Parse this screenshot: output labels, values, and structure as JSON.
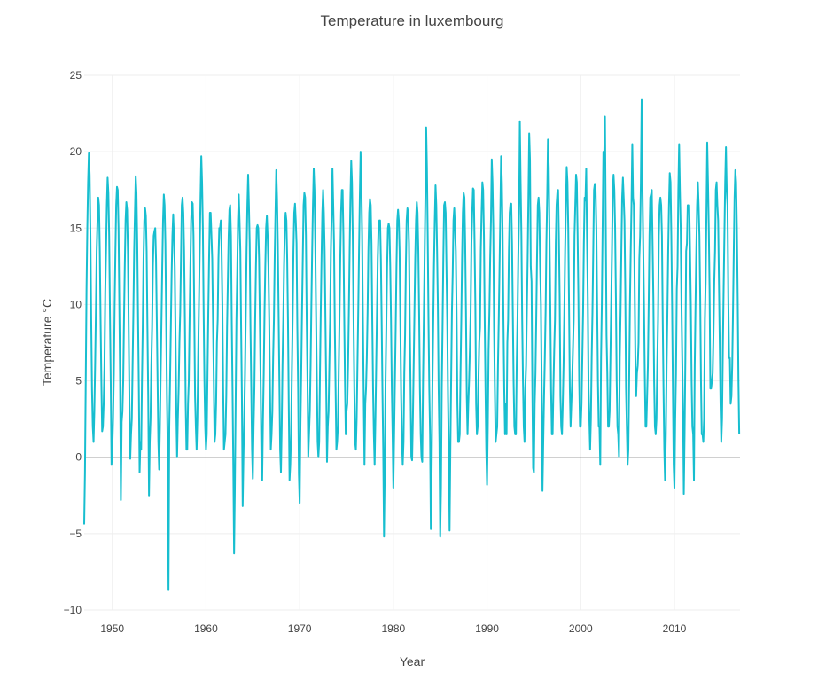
{
  "chart_data": {
    "type": "line",
    "title": "Temperature in luxembourg",
    "xlabel": "Year",
    "ylabel": "Temperature °C",
    "xlim": [
      1947,
      2017
    ],
    "ylim": [
      -10,
      25
    ],
    "x_ticks": [
      1950,
      1960,
      1970,
      1980,
      1990,
      2000,
      2010
    ],
    "y_ticks": [
      -10,
      -5,
      0,
      5,
      10,
      15,
      20,
      25
    ],
    "grid": true,
    "legend": "none",
    "colors": {
      "series": "#17becf",
      "zero_line": "#444444",
      "grid": "#eeeeee"
    },
    "sampling": "monthly mean temperature, Jan 1947 – Dec 2016",
    "series": [
      {
        "x_start": "1947-01",
        "x_step": "1 month",
        "values": [
          -4.4,
          -1.0,
          5.0,
          11.0,
          15.0,
          18.0,
          19.9,
          18.5,
          14.5,
          9.0,
          4.5,
          2.0,
          1.0,
          3.0,
          6.0,
          9.5,
          13.5,
          15.4,
          17.0,
          16.5,
          13.5,
          9.0,
          5.0,
          1.7,
          2.0,
          3.5,
          6.0,
          10.8,
          13.5,
          16.5,
          18.3,
          17.3,
          14.5,
          9.5,
          5.0,
          -0.5,
          0.5,
          2.5,
          5.5,
          10.0,
          13.5,
          16.5,
          17.7,
          17.5,
          15.0,
          10.0,
          5.0,
          -2.8,
          2.3,
          3.0,
          5.0,
          9.0,
          12.5,
          15.5,
          16.7,
          16.2,
          13.5,
          8.5,
          3.5,
          -0.1,
          1.5,
          2.5,
          6.0,
          9.5,
          13.5,
          16.0,
          18.4,
          17.3,
          14.0,
          9.0,
          4.5,
          -1.0,
          1.0,
          0.5,
          5.0,
          8.5,
          13.0,
          15.5,
          16.3,
          15.8,
          13.5,
          8.5,
          4.0,
          -2.5,
          1.0,
          2.5,
          6.0,
          8.5,
          12.5,
          14.5,
          14.8,
          15.0,
          13.0,
          9.0,
          5.0,
          1.0,
          -0.8,
          2.0,
          5.5,
          9.0,
          12.5,
          15.5,
          17.2,
          16.5,
          14.0,
          9.0,
          4.0,
          0.5,
          -8.7,
          2.0,
          5.0,
          8.5,
          12.0,
          14.5,
          15.9,
          14.5,
          12.5,
          8.0,
          3.0,
          0.0,
          2.5,
          4.5,
          7.5,
          9.5,
          13.0,
          16.5,
          17.0,
          16.0,
          13.5,
          9.0,
          3.5,
          0.5,
          0.5,
          3.5,
          5.0,
          9.0,
          12.5,
          15.5,
          16.7,
          16.6,
          14.5,
          9.5,
          4.0,
          2.0,
          0.5,
          2.5,
          6.5,
          10.0,
          13.5,
          17.0,
          19.7,
          18.0,
          15.0,
          9.5,
          5.0,
          2.0,
          0.5,
          1.5,
          5.5,
          9.5,
          13.0,
          16.0,
          16.0,
          14.5,
          13.0,
          9.0,
          5.0,
          1.0,
          1.5,
          3.5,
          7.5,
          9.0,
          13.0,
          15.0,
          15.0,
          15.5,
          13.5,
          10.0,
          4.5,
          0.5,
          1.0,
          1.5,
          4.0,
          8.5,
          11.5,
          14.5,
          16.2,
          16.5,
          14.5,
          9.0,
          4.5,
          -0.5,
          -6.3,
          -2.0,
          3.5,
          9.0,
          12.0,
          15.5,
          17.2,
          15.5,
          13.5,
          8.5,
          4.0,
          -3.2,
          0.0,
          2.5,
          5.5,
          9.5,
          13.5,
          16.5,
          18.5,
          16.5,
          14.0,
          8.5,
          4.5,
          0.5,
          -1.4,
          2.0,
          4.5,
          9.0,
          12.5,
          15.0,
          15.2,
          15.0,
          13.0,
          9.0,
          5.0,
          0.0,
          -1.5,
          2.5,
          5.5,
          9.5,
          12.5,
          15.0,
          15.8,
          14.5,
          12.5,
          9.0,
          4.5,
          0.5,
          1.5,
          3.0,
          6.5,
          9.0,
          13.0,
          16.0,
          18.8,
          17.0,
          14.0,
          9.5,
          5.0,
          0.5,
          -1.0,
          2.0,
          6.0,
          9.0,
          12.5,
          15.0,
          16.0,
          15.5,
          13.0,
          9.0,
          3.5,
          -1.5,
          -0.5,
          1.5,
          5.5,
          9.0,
          13.5,
          16.0,
          16.6,
          15.5,
          14.0,
          8.5,
          4.5,
          -1.1,
          -3.0,
          2.0,
          5.5,
          9.5,
          13.0,
          16.5,
          17.3,
          17.0,
          14.5,
          9.0,
          5.0,
          0.0,
          1.5,
          3.0,
          6.0,
          10.0,
          13.5,
          16.5,
          18.9,
          17.5,
          14.0,
          9.5,
          5.0,
          1.0,
          0.0,
          1.0,
          5.5,
          9.5,
          13.0,
          16.0,
          17.5,
          16.0,
          13.5,
          9.0,
          4.5,
          -0.3,
          2.0,
          3.0,
          6.0,
          9.0,
          13.5,
          16.0,
          18.9,
          16.5,
          14.0,
          8.5,
          4.5,
          0.5,
          1.0,
          2.0,
          5.5,
          9.0,
          13.0,
          16.0,
          17.5,
          17.5,
          14.5,
          9.5,
          5.0,
          1.5,
          3.0,
          3.5,
          6.0,
          9.5,
          13.5,
          17.0,
          19.4,
          18.0,
          14.5,
          9.0,
          4.5,
          1.0,
          0.5,
          2.5,
          6.0,
          9.5,
          13.5,
          17.0,
          20.0,
          18.0,
          14.5,
          9.0,
          4.0,
          -0.5,
          3.5,
          4.5,
          6.5,
          9.5,
          13.5,
          16.0,
          16.9,
          16.5,
          14.0,
          9.0,
          4.5,
          1.5,
          -0.5,
          2.5,
          6.0,
          9.5,
          13.0,
          15.0,
          15.5,
          15.5,
          13.0,
          9.0,
          4.5,
          0.5,
          -5.2,
          -1.0,
          5.0,
          8.5,
          12.5,
          15.0,
          15.3,
          15.0,
          12.5,
          9.0,
          4.5,
          1.5,
          -2.0,
          1.5,
          5.0,
          8.5,
          12.5,
          15.5,
          16.2,
          15.5,
          13.5,
          8.5,
          4.0,
          1.0,
          -0.5,
          1.0,
          5.5,
          8.0,
          12.5,
          15.5,
          16.3,
          16.0,
          14.0,
          9.0,
          4.5,
          0.0,
          -0.2,
          2.5,
          6.0,
          9.5,
          13.0,
          15.5,
          16.7,
          16.0,
          13.5,
          9.5,
          4.5,
          1.5,
          0.0,
          -0.3,
          5.0,
          9.0,
          13.0,
          17.0,
          21.6,
          19.0,
          14.5,
          9.0,
          4.5,
          1.5,
          -4.7,
          -1.0,
          4.5,
          8.5,
          12.5,
          15.5,
          17.8,
          16.5,
          13.5,
          10.0,
          4.5,
          1.0,
          -5.2,
          -2.0,
          4.5,
          8.5,
          13.0,
          16.5,
          16.7,
          16.0,
          12.5,
          9.0,
          4.0,
          0.5,
          -4.8,
          0.5,
          5.0,
          9.5,
          12.0,
          15.5,
          16.3,
          15.0,
          13.5,
          9.5,
          3.5,
          1.0,
          1.0,
          1.5,
          5.5,
          9.0,
          13.0,
          16.0,
          17.3,
          17.0,
          14.0,
          9.5,
          4.0,
          1.5,
          3.5,
          5.0,
          7.0,
          9.5,
          14.0,
          16.0,
          17.6,
          17.5,
          14.0,
          10.0,
          3.5,
          1.5,
          2.0,
          5.0,
          7.5,
          8.5,
          13.5,
          16.0,
          18.0,
          17.5,
          14.5,
          9.0,
          4.5,
          0.5,
          -1.8,
          2.0,
          7.0,
          9.5,
          13.0,
          15.5,
          19.5,
          18.0,
          15.0,
          8.5,
          4.5,
          1.0,
          1.5,
          2.0,
          6.0,
          9.0,
          12.5,
          16.0,
          19.7,
          18.0,
          14.5,
          9.0,
          4.5,
          1.5,
          3.5,
          1.5,
          7.5,
          9.0,
          13.5,
          16.0,
          16.6,
          16.6,
          14.0,
          9.5,
          5.0,
          2.0,
          1.5,
          1.5,
          6.0,
          9.0,
          13.0,
          16.0,
          22.0,
          18.0,
          14.5,
          9.0,
          5.0,
          2.0,
          1.0,
          4.5,
          6.0,
          9.5,
          13.0,
          17.0,
          21.2,
          19.5,
          12.5,
          11.5,
          4.5,
          -0.7,
          -1.0,
          3.5,
          5.5,
          9.0,
          13.0,
          16.5,
          17.0,
          16.0,
          12.5,
          10.0,
          4.5,
          -2.2,
          1.0,
          4.0,
          6.5,
          9.5,
          14.0,
          17.0,
          20.8,
          19.0,
          14.5,
          10.0,
          4.5,
          1.5,
          1.5,
          4.5,
          7.0,
          9.0,
          14.0,
          16.5,
          17.3,
          17.5,
          14.5,
          10.5,
          4.0,
          2.0,
          1.5,
          3.5,
          6.0,
          9.5,
          13.5,
          16.5,
          19.0,
          18.0,
          15.0,
          10.0,
          4.5,
          2.0,
          3.5,
          5.0,
          7.0,
          9.0,
          14.5,
          16.5,
          18.5,
          18.0,
          14.5,
          10.5,
          5.0,
          2.0,
          2.0,
          3.5,
          6.5,
          9.5,
          14.0,
          17.0,
          16.8,
          18.9,
          14.5,
          10.5,
          4.5,
          2.5,
          0.5,
          2.5,
          6.5,
          9.5,
          13.5,
          17.5,
          17.9,
          17.5,
          15.0,
          10.0,
          5.0,
          2.0,
          2.0,
          -0.5,
          6.5,
          10.0,
          15.0,
          20.0,
          19.5,
          22.3,
          15.5,
          8.0,
          5.5,
          2.0,
          2.0,
          3.0,
          6.5,
          10.0,
          13.5,
          17.5,
          18.5,
          17.5,
          15.0,
          10.5,
          5.0,
          2.0,
          1.5,
          0.0,
          6.5,
          9.5,
          13.5,
          17.0,
          18.3,
          17.0,
          15.5,
          11.0,
          4.5,
          2.0,
          -0.5,
          0.5,
          5.0,
          10.0,
          13.5,
          16.5,
          20.5,
          17.0,
          16.5,
          11.5,
          6.5,
          4.0,
          5.5,
          6.0,
          7.5,
          13.0,
          14.5,
          18.0,
          23.4,
          18.0,
          14.0,
          10.0,
          5.5,
          2.0,
          2.0,
          4.0,
          6.0,
          10.0,
          14.5,
          17.0,
          17.2,
          17.5,
          14.0,
          10.5,
          5.0,
          2.0,
          1.5,
          2.5,
          6.0,
          9.0,
          14.5,
          16.5,
          17.0,
          16.5,
          14.5,
          9.0,
          4.5,
          0.5,
          -1.5,
          1.5,
          6.0,
          9.5,
          13.5,
          16.5,
          18.6,
          18.0,
          14.5,
          10.0,
          4.5,
          -0.5,
          -2.0,
          2.5,
          5.5,
          11.0,
          12.5,
          17.5,
          20.5,
          17.5,
          15.0,
          10.0,
          6.5,
          3.0,
          -2.4,
          1.5,
          6.5,
          13.5,
          14.0,
          16.5,
          16.5,
          16.5,
          13.5,
          10.0,
          5.0,
          2.0,
          1.5,
          -1.5,
          6.0,
          10.0,
          13.5,
          16.5,
          18.0,
          16.5,
          14.5,
          10.5,
          5.0,
          1.5,
          1.5,
          1.0,
          2.5,
          9.0,
          11.5,
          16.0,
          20.6,
          18.0,
          15.0,
          11.0,
          4.5,
          4.5,
          5.0,
          5.5,
          8.0,
          11.5,
          13.5,
          17.5,
          18.0,
          16.5,
          15.5,
          11.5,
          7.5,
          3.5,
          1.0,
          2.5,
          7.0,
          11.0,
          14.5,
          18.0,
          20.3,
          17.5,
          16.5,
          10.5,
          6.5,
          6.5,
          3.5,
          4.0,
          6.0,
          9.5,
          13.5,
          17.0,
          18.8,
          18.0,
          15.0,
          10.5,
          5.0,
          1.5
        ]
      }
    ]
  }
}
